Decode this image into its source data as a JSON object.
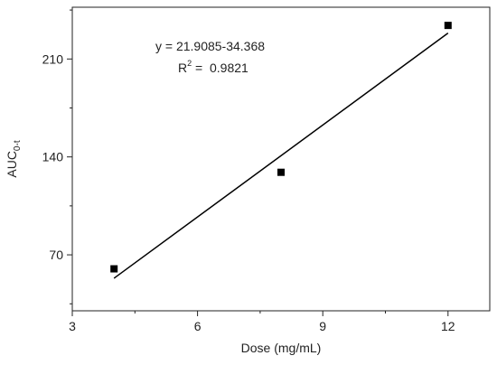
{
  "chart_data": {
    "type": "scatter",
    "x_label": "Dose  (mg/mL)",
    "y_label": {
      "text": "AUC",
      "sub": "0-t"
    },
    "annotations": [
      {
        "text": "y = 21.9085-34.368"
      },
      {
        "text": "R",
        "sup": "2",
        "rest": " =  0.9821"
      }
    ],
    "series": [
      {
        "kind": "points",
        "color": "#000000",
        "x": [
          4,
          8,
          12
        ],
        "values": [
          60,
          129,
          234
        ]
      },
      {
        "kind": "fit",
        "color": "#000000",
        "x": [
          4,
          12
        ],
        "values": [
          53.27,
          228.5
        ]
      }
    ],
    "xlim": [
      3,
      13
    ],
    "xticks": [
      3,
      6,
      9,
      12
    ],
    "xminor": [
      4.5,
      7.5,
      10.5
    ],
    "ylim": [
      30,
      247
    ],
    "yticks": [
      70,
      140,
      210
    ],
    "yminor": [
      35,
      105,
      175,
      245
    ]
  }
}
